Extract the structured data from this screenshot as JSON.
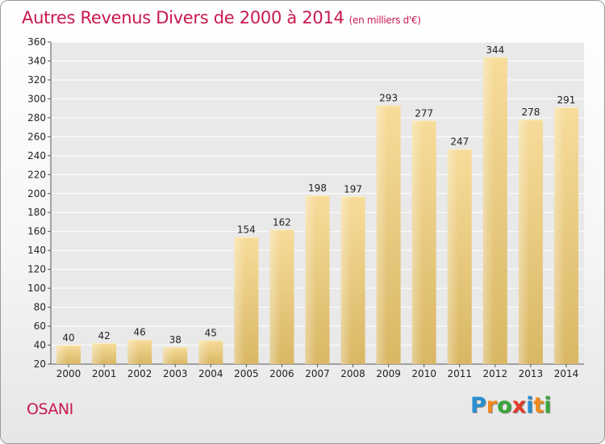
{
  "title": "Autres Revenus Divers de 2000 à 2014",
  "unit": "(en milliers d'€)",
  "place": "OSANI",
  "logo": {
    "text": "Proxiti",
    "colors": [
      "#2a8fd0",
      "#f08a1c",
      "#3aa63a",
      "#e23b2a",
      "#2a8fd0",
      "#f08a1c",
      "#3aa63a"
    ]
  },
  "chart_data": {
    "type": "bar",
    "categories": [
      "2000",
      "2001",
      "2002",
      "2003",
      "2004",
      "2005",
      "2006",
      "2007",
      "2008",
      "2009",
      "2010",
      "2011",
      "2012",
      "2013",
      "2014"
    ],
    "values": [
      40,
      42,
      46,
      38,
      45,
      154,
      162,
      198,
      197,
      293,
      277,
      247,
      344,
      278,
      291
    ],
    "ylim": [
      20,
      360
    ],
    "yticks": [
      20,
      40,
      60,
      80,
      100,
      120,
      140,
      160,
      180,
      200,
      220,
      240,
      260,
      280,
      300,
      320,
      340,
      360
    ],
    "grid": true,
    "bar_color": "#e6c77f"
  }
}
